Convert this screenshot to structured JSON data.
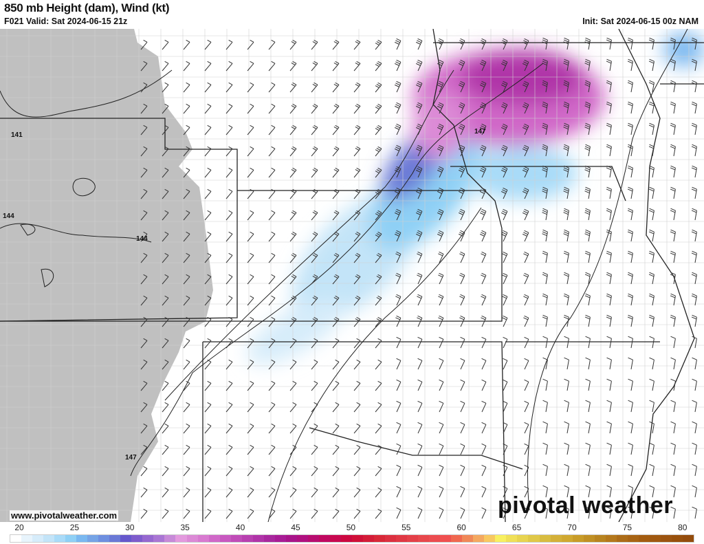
{
  "header": {
    "title": "850 mb Height (dam), Wind (kt)",
    "valid": "F021 Valid: Sat 2024-06-15 21z",
    "init": "Init: Sat 2024-06-15 00z NAM"
  },
  "map": {
    "contour_labels": [
      "141",
      "144",
      "144",
      "147",
      "147"
    ],
    "terrain_mask_color": "#c0c0c0",
    "watermark": "www.pivotalweather.com",
    "logo": "pivotal weather"
  },
  "colorbar": {
    "labels": [
      "20",
      "25",
      "30",
      "35",
      "40",
      "45",
      "50",
      "55",
      "60",
      "65",
      "70",
      "75",
      "80"
    ],
    "colors": [
      "#ffffff",
      "#e8f4fc",
      "#d6ecfa",
      "#c3e4f8",
      "#a9dbf8",
      "#8fd0f5",
      "#7ab8f0",
      "#76a4e6",
      "#6e8fe0",
      "#6a79d6",
      "#6658cc",
      "#7e5ccc",
      "#9668d0",
      "#a976d4",
      "#c78ad8",
      "#e39ade",
      "#dc8ad6",
      "#d87ad0",
      "#d068c8",
      "#c858c0",
      "#c04cb8",
      "#b840b0",
      "#b034a8",
      "#a8289e",
      "#a81c96",
      "#a8148a",
      "#b01080",
      "#b80c70",
      "#c00860",
      "#c80850",
      "#cc0840",
      "#d01038",
      "#d41c38",
      "#d82838",
      "#dc3040",
      "#e03844",
      "#e44048",
      "#e8484c",
      "#ec4c50",
      "#f05050",
      "#f06850",
      "#f08858",
      "#f4a860",
      "#f8c860",
      "#f8f060",
      "#f0e058",
      "#e8d450",
      "#e0c848",
      "#d8bc40",
      "#d4b038",
      "#d0a830",
      "#c89c28",
      "#c09024",
      "#b88420",
      "#b4781c",
      "#ac6c18",
      "#a86414",
      "#a45c10",
      "#a05810",
      "#9c5410",
      "#98500c",
      "#944c0c"
    ]
  }
}
